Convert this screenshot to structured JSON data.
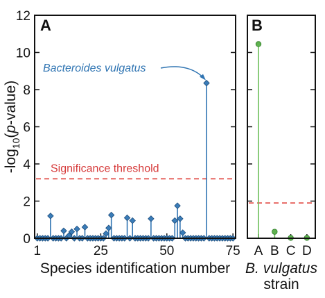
{
  "colors": {
    "stem_a": "#2f74b2",
    "marker_a": "#3a7cb8",
    "stem_b": "#6cbf5a",
    "marker_b": "#5fb24f",
    "threshold": "#e0403a"
  },
  "chart_data": [
    {
      "panel": "A",
      "type": "scatter",
      "style": "stem",
      "marker": "diamond",
      "xlabel": "Species identification number",
      "ylabel_parts": {
        "prefix": "-log",
        "subscript": "10",
        "open": "(",
        "italic": "p",
        "suffix": "-value)"
      },
      "xlim": [
        0,
        76
      ],
      "ylim": [
        0,
        12
      ],
      "x_ticks": [
        "1",
        "25",
        "50",
        "75"
      ],
      "x_tick_values": [
        1,
        25,
        50,
        75
      ],
      "y_ticks": [
        "0",
        "2",
        "4",
        "6",
        "8",
        "10",
        "12"
      ],
      "y_tick_values": [
        0,
        2,
        4,
        6,
        8,
        10,
        12
      ],
      "threshold": 3.2,
      "threshold_label": "Significance threshold",
      "highlight_label": "Bacteroides vulgatus",
      "highlight_x": 65,
      "points": [
        [
          1,
          0
        ],
        [
          2,
          0
        ],
        [
          3,
          0
        ],
        [
          4,
          0
        ],
        [
          5,
          0
        ],
        [
          6,
          1.2
        ],
        [
          7,
          0
        ],
        [
          8,
          0
        ],
        [
          9,
          0
        ],
        [
          10,
          0
        ],
        [
          11,
          0.4
        ],
        [
          12,
          0
        ],
        [
          13,
          0.15
        ],
        [
          14,
          0.35
        ],
        [
          15,
          0
        ],
        [
          16,
          0.5
        ],
        [
          17,
          0
        ],
        [
          18,
          0
        ],
        [
          19,
          0.6
        ],
        [
          20,
          0
        ],
        [
          21,
          0
        ],
        [
          22,
          0
        ],
        [
          23,
          0
        ],
        [
          24,
          0
        ],
        [
          25,
          0
        ],
        [
          26,
          0
        ],
        [
          27,
          0.25
        ],
        [
          28,
          0.55
        ],
        [
          29,
          1.25
        ],
        [
          30,
          0
        ],
        [
          31,
          0
        ],
        [
          32,
          0
        ],
        [
          33,
          0
        ],
        [
          34,
          0
        ],
        [
          35,
          1.1
        ],
        [
          36,
          0
        ],
        [
          37,
          0.95
        ],
        [
          38,
          0
        ],
        [
          39,
          0
        ],
        [
          40,
          0
        ],
        [
          41,
          0
        ],
        [
          42,
          0
        ],
        [
          43,
          0
        ],
        [
          44,
          1.05
        ],
        [
          45,
          0
        ],
        [
          46,
          0
        ],
        [
          47,
          0
        ],
        [
          48,
          0
        ],
        [
          49,
          0
        ],
        [
          50,
          0
        ],
        [
          51,
          0
        ],
        [
          52,
          0
        ],
        [
          53,
          0.95
        ],
        [
          54,
          1.75
        ],
        [
          55,
          1.05
        ],
        [
          56,
          0.3
        ],
        [
          57,
          0
        ],
        [
          58,
          0
        ],
        [
          59,
          0
        ],
        [
          60,
          0
        ],
        [
          61,
          0
        ],
        [
          62,
          0
        ],
        [
          63,
          0
        ],
        [
          64,
          0
        ],
        [
          65,
          8.35
        ],
        [
          66,
          0
        ],
        [
          67,
          0
        ],
        [
          68,
          0
        ],
        [
          69,
          0
        ],
        [
          70,
          0
        ],
        [
          71,
          0
        ],
        [
          72,
          0
        ],
        [
          73,
          0
        ],
        [
          74,
          0
        ],
        [
          75,
          0
        ]
      ]
    },
    {
      "panel": "B",
      "type": "scatter",
      "style": "stem",
      "marker": "circle",
      "xlabel_italic": "B. vulgatus",
      "xlabel_line2": "strain",
      "categories": [
        "A",
        "B",
        "C",
        "D"
      ],
      "values": [
        10.45,
        0.35,
        0.02,
        0.02
      ],
      "ylim": [
        0,
        12
      ],
      "threshold": 1.9
    }
  ]
}
